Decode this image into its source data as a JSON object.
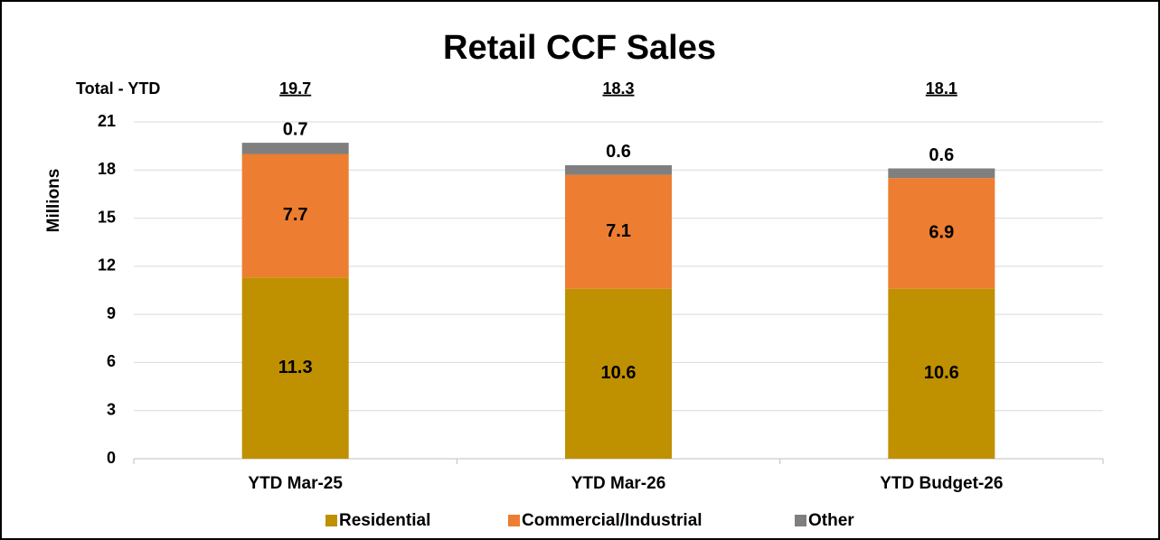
{
  "chart_data": {
    "type": "stacked_bar",
    "title": "Retail CCF Sales",
    "y_label": "Millions",
    "categories": [
      "YTD Mar-25",
      "YTD Mar-26",
      "YTD Budget-26"
    ],
    "series": [
      {
        "name": "Residential",
        "color": "#bf9000",
        "values": [
          11.3,
          10.6,
          10.6
        ]
      },
      {
        "name": "Commercial/Industrial",
        "color": "#ed7d31",
        "values": [
          7.7,
          7.1,
          6.9
        ]
      },
      {
        "name": "Other",
        "color": "#7f7f7f",
        "values": [
          0.7,
          0.6,
          0.6
        ]
      }
    ],
    "totals": {
      "label": "Total - YTD",
      "values": [
        19.7,
        18.3,
        18.1
      ]
    },
    "ylim": [
      0,
      21
    ],
    "yticks": [
      0,
      3,
      6,
      9,
      12,
      15,
      18,
      21
    ],
    "grid": true,
    "legend": "bottom"
  }
}
